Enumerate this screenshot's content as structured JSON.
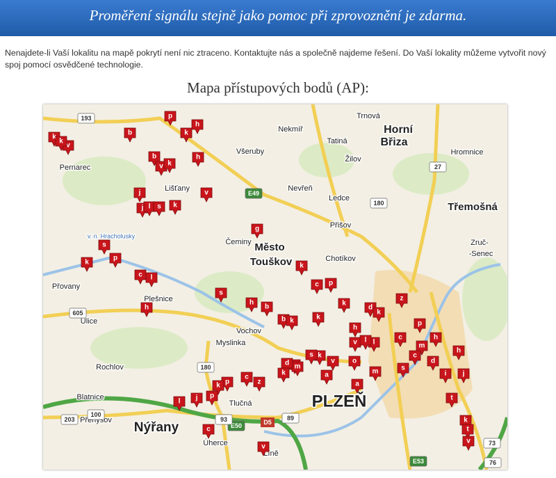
{
  "banner": {
    "text": "Proměření signálu stejně jako pomoc při zprovoznění je zdarma."
  },
  "intro": "Nenajdete-li Vaší lokalitu na mapě pokrytí není nic ztraceno. Kontaktujte nás a společně najdeme řešení. Do Vaší lokality můžeme vytvořit nový spoj pomocí osvědčené technologie.",
  "map": {
    "title": "Mapa přístupových bodů (AP):",
    "places": [
      "Pernarec",
      "Všeruby",
      "Nekmíř",
      "Trnová",
      "Horní",
      "Břiza",
      "Tatiná",
      "Žilov",
      "Hromnice",
      "Lišťany",
      "Nevřeň",
      "Ledce",
      "Třemošná",
      "Přišov",
      "Čeminy",
      "Chotíkov",
      "Zruč-",
      "-Senec",
      "Město",
      "Touškov",
      "v. n. Hracholusky",
      "Přovany",
      "Plešnice",
      "Úlice",
      "Vochov",
      "Myslinka",
      "Rochlov",
      "Blatnice",
      "Nýřany",
      "Tlučná",
      "PLZEŇ",
      "Přehýšov",
      "Úherce",
      "Líně"
    ],
    "roads": [
      "193",
      "27",
      "E49",
      "180",
      "605",
      "180",
      "203",
      "E50",
      "D5",
      "93",
      "100",
      "89",
      "E53",
      "76",
      "73"
    ],
    "markers": [
      "k",
      "v",
      "k",
      "b",
      "p",
      "h",
      "k",
      "b",
      "v",
      "k",
      "h",
      "j",
      "j",
      "l",
      "s",
      "k",
      "v",
      "g",
      "s",
      "p",
      "k",
      "c",
      "l",
      "h",
      "s",
      "h",
      "b",
      "k",
      "c",
      "p",
      "k",
      "d",
      "k",
      "z",
      "b",
      "k",
      "k",
      "h",
      "p",
      "h",
      "m",
      "h",
      "c",
      "v",
      "l",
      "s",
      "m",
      "d",
      "k",
      "c",
      "p",
      "k",
      "z",
      "a",
      "m",
      "o",
      "c",
      "d",
      "s",
      "j",
      "i",
      "t",
      "l",
      "j",
      "p",
      "c",
      "k",
      "t",
      "v",
      "v",
      "k",
      "v",
      "a",
      "s",
      "l"
    ]
  }
}
